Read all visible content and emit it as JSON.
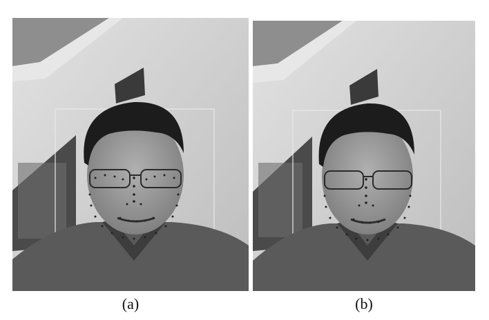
{
  "figure": {
    "panels": [
      {
        "caption": "(a)"
      },
      {
        "caption": "(b)"
      }
    ]
  },
  "colors": {
    "background": "#ffffff",
    "wall": "#cfcfcf",
    "ceiling": "#8e8e8e",
    "shirt": "#5a5a5a",
    "hair": "#1c1c1c",
    "skin": "#9a9a9a",
    "overlay_box": "#e8e8e8",
    "landmark_dot": "#222222"
  },
  "icons": {
    "face_box": "face-bounding-box",
    "landmarks": "facial-landmark-points"
  }
}
